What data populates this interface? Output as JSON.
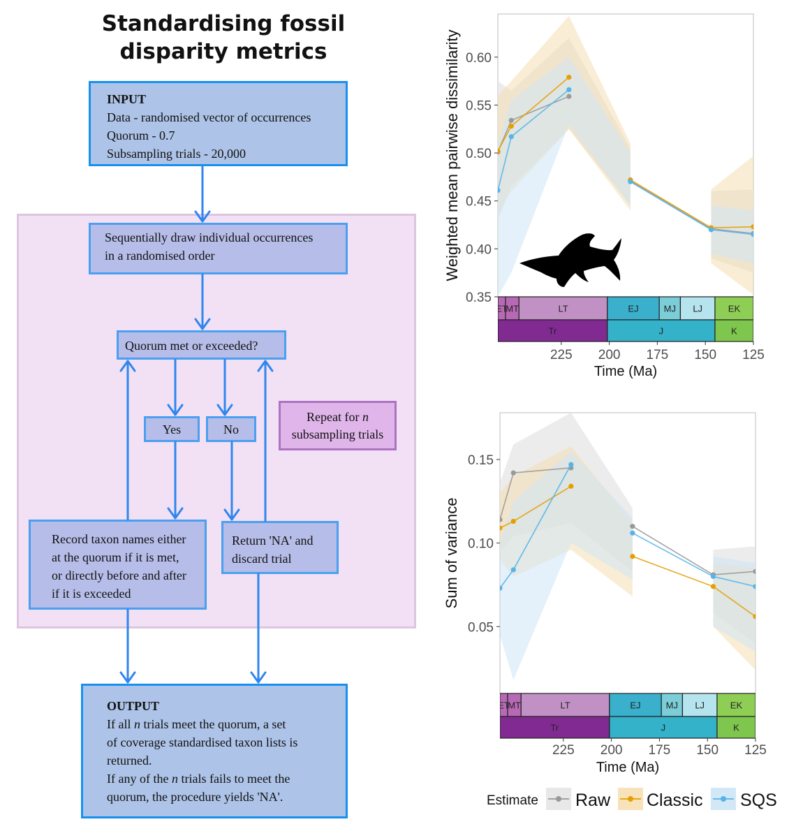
{
  "flowchart": {
    "title_line1": "Standardising fossil",
    "title_line2": "disparity metrics",
    "input": {
      "header": "INPUT",
      "lines": [
        "Data - randomised vector of occurrences",
        "Quorum - 0.7",
        "Subsampling trials - 20,000"
      ]
    },
    "draw_step": {
      "lines": [
        "Sequentially draw individual occurrences",
        "in a randomised order"
      ]
    },
    "decision": "Quorum met or exceeded?",
    "yes": "Yes",
    "no": "No",
    "repeat": {
      "prefix": "Repeat for ",
      "n": "n",
      "line2": "subsampling trials"
    },
    "record": {
      "lines": [
        "Record taxon names either",
        "at the quorum if it is met,",
        "or directly before and after",
        "if it is exceeded"
      ]
    },
    "return_na": {
      "lines": [
        "Return 'NA' and",
        "discard trial"
      ]
    },
    "output": {
      "header": "OUTPUT",
      "l1_pre": "If all ",
      "l1_n": "n",
      "l1_post": " trials meet the quorum, a set",
      "l2": "of coverage standardised taxon lists is",
      "l3": "returned.",
      "l4_pre": "If any of the ",
      "l4_n": "n",
      "l4_post": " trials fails to meet the",
      "l5": "quorum, the procedure yields 'NA'."
    }
  },
  "chart_data": [
    {
      "type": "line",
      "ylabel": "Weighted mean pairwise dissimilarity",
      "xlabel": "Time (Ma)",
      "x_ticks": [
        225,
        200,
        175,
        150,
        125
      ],
      "y_ticks": [
        0.35,
        0.4,
        0.45,
        0.5,
        0.55,
        0.6
      ],
      "xlim": [
        258,
        125
      ],
      "ylim": [
        0.35,
        0.645
      ],
      "series": [
        {
          "name": "Raw",
          "color": "#999999",
          "points": [
            [
              258,
              0.501
            ],
            [
              251,
              0.534
            ],
            [
              221,
              0.559
            ],
            [
              200,
              null
            ],
            [
              189,
              0.471
            ],
            [
              147,
              0.421
            ],
            [
              125,
              0.416
            ]
          ],
          "lower": [
            [
              258,
              0.43
            ],
            [
              251,
              0.465
            ],
            [
              221,
              0.525
            ],
            [
              189,
              0.445
            ],
            [
              147,
              0.39
            ],
            [
              125,
              0.375
            ]
          ],
          "upper": [
            [
              258,
              0.575
            ],
            [
              251,
              0.565
            ],
            [
              221,
              0.62
            ],
            [
              189,
              0.505
            ],
            [
              147,
              0.46
            ],
            [
              125,
              0.462
            ]
          ]
        },
        {
          "name": "Classic",
          "color": "#E69F00",
          "points": [
            [
              258,
              0.502
            ],
            [
              251,
              0.528
            ],
            [
              221,
              0.579
            ],
            [
              200,
              null
            ],
            [
              189,
              0.472
            ],
            [
              147,
              0.422
            ],
            [
              125,
              0.423
            ]
          ],
          "lower": [
            [
              258,
              0.437
            ],
            [
              251,
              0.46
            ],
            [
              221,
              0.525
            ],
            [
              189,
              0.44
            ],
            [
              147,
              0.385
            ],
            [
              125,
              0.352
            ]
          ],
          "upper": [
            [
              258,
              0.56
            ],
            [
              251,
              0.575
            ],
            [
              221,
              0.643
            ],
            [
              189,
              0.51
            ],
            [
              147,
              0.462
            ],
            [
              125,
              0.497
            ]
          ]
        },
        {
          "name": "SQS",
          "color": "#56B4E9",
          "points": [
            [
              258,
              0.461
            ],
            [
              251,
              0.517
            ],
            [
              221,
              0.566
            ],
            [
              200,
              null
            ],
            [
              189,
              0.47
            ],
            [
              147,
              0.42
            ],
            [
              125,
              0.415
            ]
          ],
          "lower": [
            [
              258,
              0.35
            ],
            [
              251,
              0.375
            ],
            [
              221,
              0.53
            ],
            [
              189,
              0.445
            ],
            [
              147,
              0.395
            ],
            [
              125,
              0.385
            ]
          ],
          "upper": [
            [
              258,
              0.51
            ],
            [
              251,
              0.555
            ],
            [
              221,
              0.6
            ],
            [
              189,
              0.5
            ],
            [
              147,
              0.445
            ],
            [
              125,
              0.44
            ]
          ]
        }
      ],
      "timescale": {
        "stages": [
          {
            "label": "ET",
            "start": 259,
            "end": 254,
            "color": "#b869b6"
          },
          {
            "label": "MT",
            "start": 254,
            "end": 247,
            "color": "#b869b6"
          },
          {
            "label": "LT",
            "start": 247,
            "end": 201,
            "color": "#c191c5"
          },
          {
            "label": "EJ",
            "start": 201,
            "end": 174,
            "color": "#3ab0cd"
          },
          {
            "label": "MJ",
            "start": 174,
            "end": 163,
            "color": "#7bcdd8"
          },
          {
            "label": "LJ",
            "start": 163,
            "end": 145,
            "color": "#b5e4ee"
          },
          {
            "label": "EK",
            "start": 145,
            "end": 125,
            "color": "#8fce55"
          }
        ],
        "periods": [
          {
            "label": "Tr",
            "start": 259,
            "end": 201,
            "color": "#812b92"
          },
          {
            "label": "J",
            "start": 201,
            "end": 145,
            "color": "#34b2c9"
          },
          {
            "label": "K",
            "start": 145,
            "end": 125,
            "color": "#7fc64e"
          }
        ]
      },
      "silhouette": "ichthyosaur-silhouette"
    },
    {
      "type": "line",
      "ylabel": "Sum of variance",
      "xlabel": "Time (Ma)",
      "x_ticks": [
        225,
        200,
        175,
        150,
        125
      ],
      "y_ticks": [
        0.05,
        0.1,
        0.15
      ],
      "xlim": [
        258,
        125
      ],
      "ylim": [
        0.01,
        0.178
      ],
      "series": [
        {
          "name": "Raw",
          "color": "#999999",
          "points": [
            [
              258,
              0.114
            ],
            [
              251,
              0.142
            ],
            [
              221,
              0.145
            ],
            [
              200,
              null
            ],
            [
              189,
              0.11
            ],
            [
              147,
              0.081
            ],
            [
              125,
              0.083
            ]
          ],
          "lower": [
            [
              258,
              0.095
            ],
            [
              251,
              0.104
            ],
            [
              221,
              0.112
            ],
            [
              189,
              0.083
            ],
            [
              147,
              0.058
            ],
            [
              125,
              0.04
            ]
          ],
          "upper": [
            [
              258,
              0.136
            ],
            [
              251,
              0.159
            ],
            [
              221,
              0.178
            ],
            [
              189,
              0.121
            ],
            [
              147,
              0.096
            ],
            [
              125,
              0.098
            ]
          ]
        },
        {
          "name": "Classic",
          "color": "#E69F00",
          "points": [
            [
              258,
              0.109
            ],
            [
              251,
              0.113
            ],
            [
              221,
              0.134
            ],
            [
              200,
              null
            ],
            [
              189,
              0.092
            ],
            [
              147,
              0.074
            ],
            [
              125,
              0.056
            ]
          ],
          "lower": [
            [
              258,
              0.09
            ],
            [
              251,
              0.08
            ],
            [
              221,
              0.096
            ],
            [
              189,
              0.068
            ],
            [
              147,
              0.05
            ],
            [
              125,
              0.024
            ]
          ],
          "upper": [
            [
              258,
              0.13
            ],
            [
              251,
              0.14
            ],
            [
              221,
              0.158
            ],
            [
              189,
              0.112
            ],
            [
              147,
              0.088
            ],
            [
              125,
              0.085
            ]
          ]
        },
        {
          "name": "SQS",
          "color": "#56B4E9",
          "points": [
            [
              258,
              0.073
            ],
            [
              251,
              0.084
            ],
            [
              221,
              0.147
            ],
            [
              200,
              null
            ],
            [
              189,
              0.106
            ],
            [
              147,
              0.08
            ],
            [
              125,
              0.074
            ]
          ],
          "lower": [
            [
              258,
              0.045
            ],
            [
              251,
              0.018
            ],
            [
              221,
              0.1
            ],
            [
              189,
              0.078
            ],
            [
              147,
              0.05
            ],
            [
              125,
              0.035
            ]
          ],
          "upper": [
            [
              258,
              0.1
            ],
            [
              251,
              0.125
            ],
            [
              221,
              0.155
            ],
            [
              189,
              0.115
            ],
            [
              147,
              0.092
            ],
            [
              125,
              0.088
            ]
          ]
        }
      ],
      "timescale": {
        "stages": [
          {
            "label": "ET",
            "start": 259,
            "end": 254,
            "color": "#b869b6"
          },
          {
            "label": "MT",
            "start": 254,
            "end": 247,
            "color": "#b869b6"
          },
          {
            "label": "LT",
            "start": 247,
            "end": 201,
            "color": "#c191c5"
          },
          {
            "label": "EJ",
            "start": 201,
            "end": 174,
            "color": "#3ab0cd"
          },
          {
            "label": "MJ",
            "start": 174,
            "end": 163,
            "color": "#7bcdd8"
          },
          {
            "label": "LJ",
            "start": 163,
            "end": 145,
            "color": "#b5e4ee"
          },
          {
            "label": "EK",
            "start": 145,
            "end": 125,
            "color": "#8fce55"
          }
        ],
        "periods": [
          {
            "label": "Tr",
            "start": 259,
            "end": 201,
            "color": "#812b92"
          },
          {
            "label": "J",
            "start": 201,
            "end": 145,
            "color": "#34b2c9"
          },
          {
            "label": "K",
            "start": 145,
            "end": 125,
            "color": "#7fc64e"
          }
        ]
      }
    }
  ],
  "legend": {
    "title": "Estimate",
    "items": [
      {
        "label": "Raw",
        "color": "#999999"
      },
      {
        "label": "Classic",
        "color": "#E69F00"
      },
      {
        "label": "SQS",
        "color": "#56B4E9"
      }
    ]
  }
}
